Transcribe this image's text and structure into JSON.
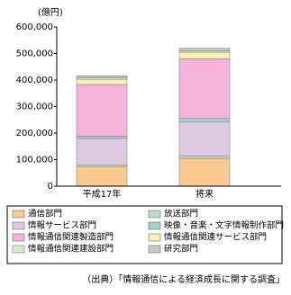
{
  "chart_data": {
    "type": "stacked-bar",
    "y_label": "(億円)",
    "source": "（出典）「情報通信による経済成長に関する調査」",
    "categories": [
      "平成17年",
      "将来"
    ],
    "series": [
      {
        "name": "通信部門",
        "color": "#f9c98f",
        "values": [
          74000,
          105000
        ]
      },
      {
        "name": "放送部門",
        "color": "#b9dfc9",
        "values": [
          6000,
          8000
        ]
      },
      {
        "name": "情報サービス部門",
        "color": "#ddc9e2",
        "values": [
          100000,
          130000
        ]
      },
      {
        "name": "映像・音楽・文字情報制作部門",
        "color": "#9fd3cc",
        "values": [
          8000,
          12000
        ]
      },
      {
        "name": "情報通信関連製造部門",
        "color": "#f6b4dc",
        "values": [
          195000,
          225000
        ]
      },
      {
        "name": "情報通信関連サービス部門",
        "color": "#fbf0b4",
        "values": [
          20000,
          25000
        ]
      },
      {
        "name": "情報通信関連建設部門",
        "color": "#d6eec6",
        "values": [
          5000,
          5000
        ]
      },
      {
        "name": "研究部門",
        "color": "#c8c8c8",
        "values": [
          8000,
          10000
        ]
      }
    ],
    "ylim": [
      0,
      600000
    ],
    "yticks": [
      0,
      {
        "value": 100000,
        "label": "100,000"
      },
      {
        "value": 200000,
        "label": "200,000"
      },
      {
        "value": 300000,
        "label": "300,000"
      },
      {
        "value": 400000,
        "label": "400,000"
      },
      {
        "value": 500000,
        "label": "500,000"
      },
      {
        "value": 600000,
        "label": "600,000"
      }
    ]
  }
}
